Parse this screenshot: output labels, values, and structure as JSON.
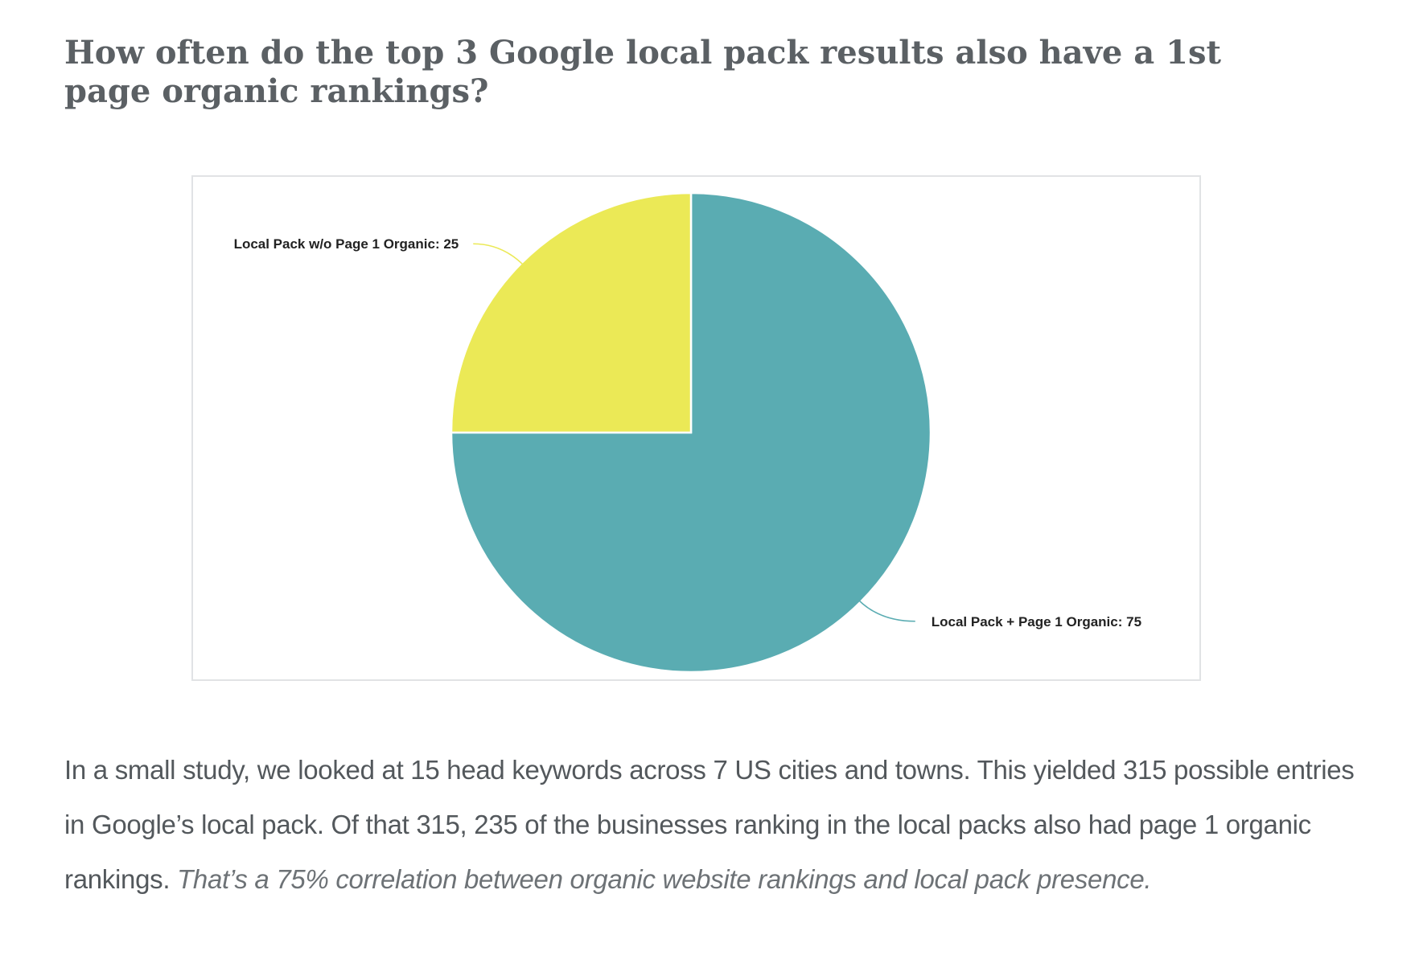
{
  "article": {
    "heading": "How often do the top 3 Google local pack results also have a 1st page organic rankings?",
    "paragraph_main": "In a small study, we looked at 15 head keywords across 7 US cities and towns. This yielded 315 possible entries in Google’s local pack. Of that 315, 235 of the businesses ranking in the local packs also had page 1 organic rankings.",
    "paragraph_emphasis": "That’s a 75% correlation between organic website rankings and local pack presence."
  },
  "chart_data": {
    "type": "pie",
    "slices": [
      {
        "name": "Local Pack + Page 1 Organic",
        "value": 75,
        "label": "Local Pack + Page 1 Organic: 75",
        "color": "#5aacb2"
      },
      {
        "name": "Local Pack w/o Page 1 Organic",
        "value": 25,
        "label": "Local Pack w/o Page 1 Organic: 25",
        "color": "#ebe956"
      }
    ],
    "start_angle": "top, clockwise",
    "legend": "none",
    "slice_labels": "outside with leader lines"
  }
}
